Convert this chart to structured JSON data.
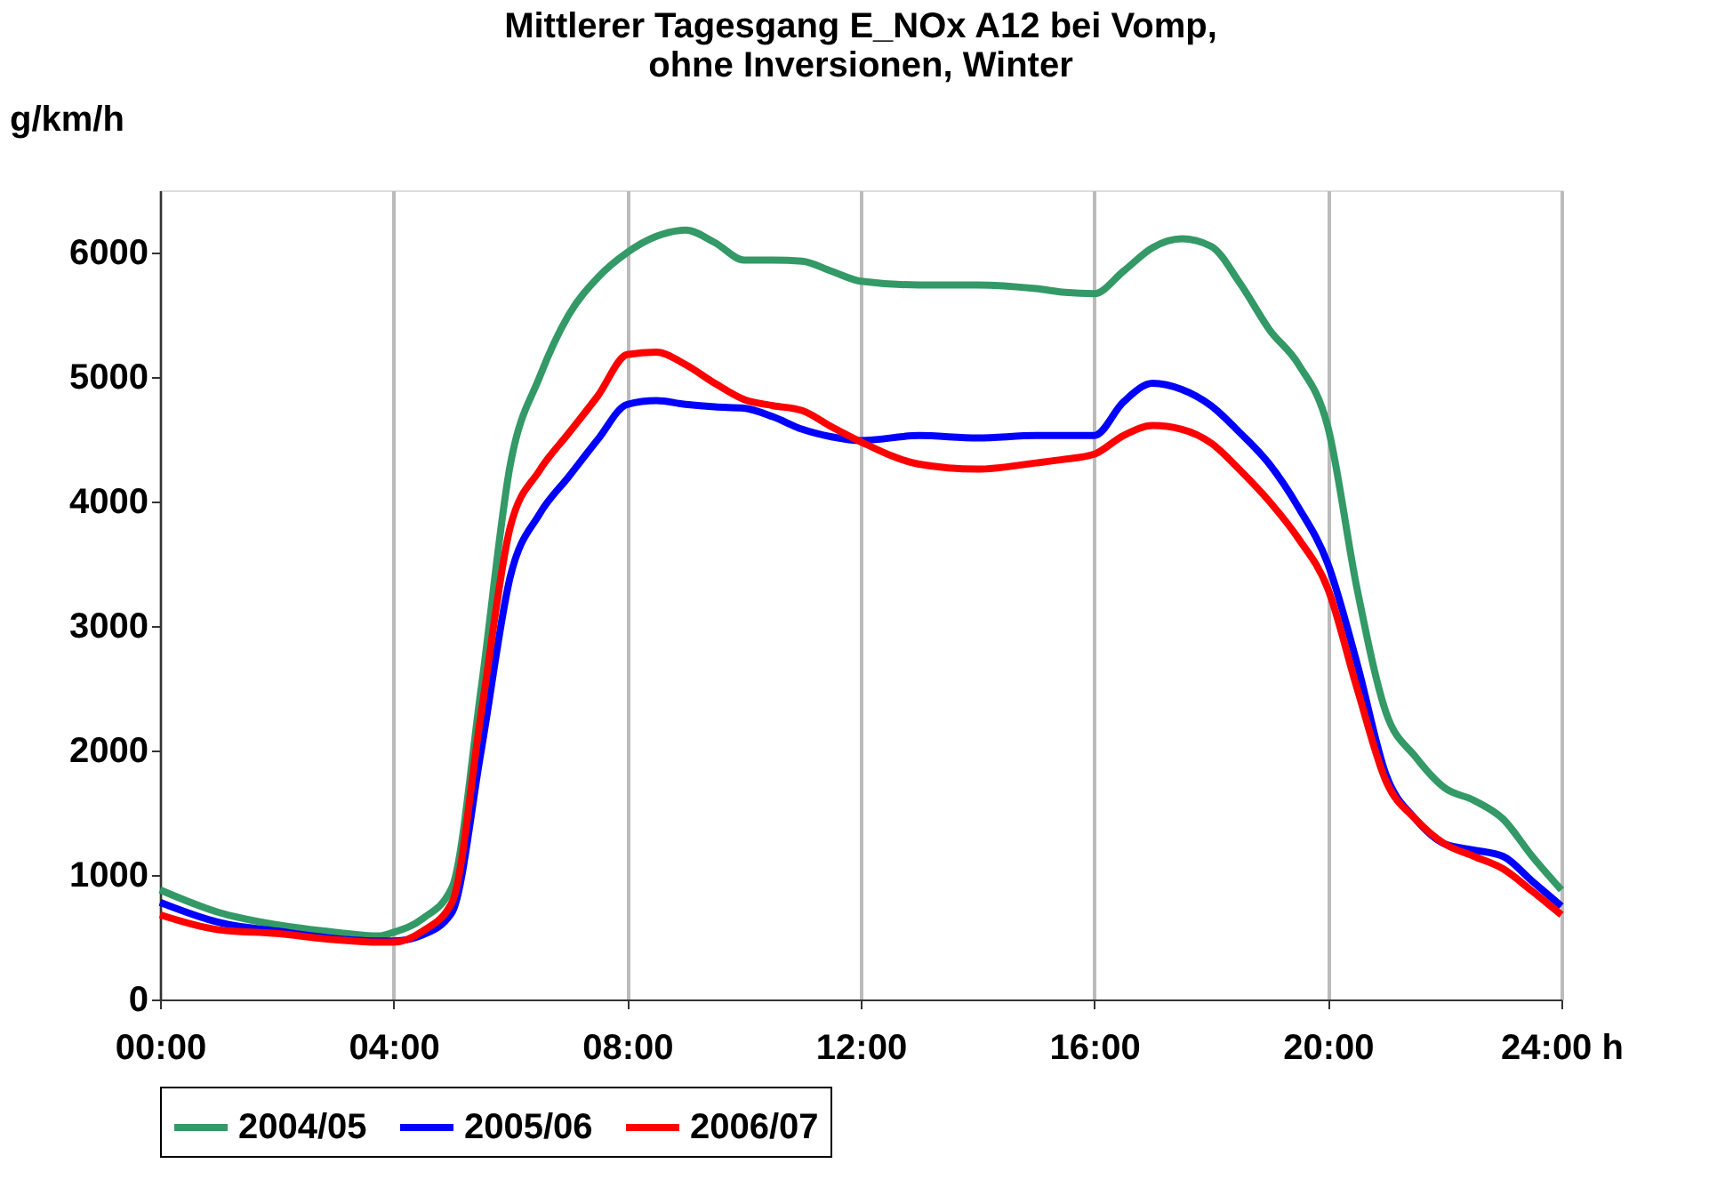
{
  "chart_data": {
    "type": "line",
    "title": "Mittlerer Tagesgang E_NOx A12 bei Vomp,\nohne Inversionen, Winter",
    "ylabel": "g/km/h",
    "x": [
      0,
      1,
      2,
      3,
      3.75,
      4,
      4.5,
      5,
      5.5,
      6,
      6.5,
      7,
      7.5,
      8,
      8.5,
      9,
      9.5,
      10,
      10.5,
      11,
      11.5,
      12,
      13,
      14,
      15,
      15.5,
      16,
      16.5,
      17,
      17.5,
      18,
      18.5,
      19,
      19.5,
      20,
      20.5,
      21,
      21.5,
      22,
      22.5,
      23,
      23.5,
      24
    ],
    "series": [
      {
        "name": "2004/05",
        "color": "#339966",
        "values": [
          880,
          700,
          600,
          540,
          510,
          540,
          650,
          900,
          2500,
          4300,
          5000,
          5500,
          5800,
          6000,
          6130,
          6180,
          6080,
          5940,
          5940,
          5930,
          5850,
          5770,
          5740,
          5740,
          5710,
          5680,
          5670,
          5850,
          6040,
          6110,
          6050,
          5750,
          5380,
          5100,
          4600,
          3300,
          2300,
          1950,
          1700,
          1600,
          1450,
          1150,
          880
        ]
      },
      {
        "name": "2005/06",
        "color": "#0000ff",
        "values": [
          780,
          620,
          550,
          490,
          470,
          470,
          520,
          700,
          2000,
          3400,
          3900,
          4200,
          4500,
          4780,
          4810,
          4780,
          4760,
          4750,
          4680,
          4580,
          4520,
          4490,
          4530,
          4510,
          4530,
          4530,
          4530,
          4800,
          4950,
          4900,
          4770,
          4550,
          4300,
          3950,
          3500,
          2700,
          1800,
          1450,
          1250,
          1200,
          1150,
          950,
          750
        ]
      },
      {
        "name": "2006/07",
        "color": "#ff0000",
        "values": [
          680,
          560,
          530,
          480,
          460,
          460,
          550,
          780,
          2300,
          3800,
          4250,
          4550,
          4850,
          5180,
          5200,
          5100,
          4950,
          4820,
          4770,
          4730,
          4600,
          4480,
          4300,
          4260,
          4310,
          4340,
          4380,
          4530,
          4610,
          4580,
          4470,
          4250,
          4000,
          3700,
          3300,
          2500,
          1750,
          1450,
          1250,
          1150,
          1050,
          870,
          680
        ]
      }
    ],
    "xlim": [
      0,
      24
    ],
    "xticks": [
      {
        "value": 0,
        "label": "00:00"
      },
      {
        "value": 4,
        "label": "04:00"
      },
      {
        "value": 8,
        "label": "08:00"
      },
      {
        "value": 12,
        "label": "12:00"
      },
      {
        "value": 16,
        "label": "16:00"
      },
      {
        "value": 20,
        "label": "20:00"
      },
      {
        "value": 24,
        "label": "24:00 h"
      }
    ],
    "ylim": [
      0,
      6500
    ],
    "yticks": [
      0,
      1000,
      2000,
      3000,
      4000,
      5000,
      6000
    ],
    "grid": "x",
    "legend": "bottom",
    "line_style": "solid",
    "marker": "none"
  }
}
